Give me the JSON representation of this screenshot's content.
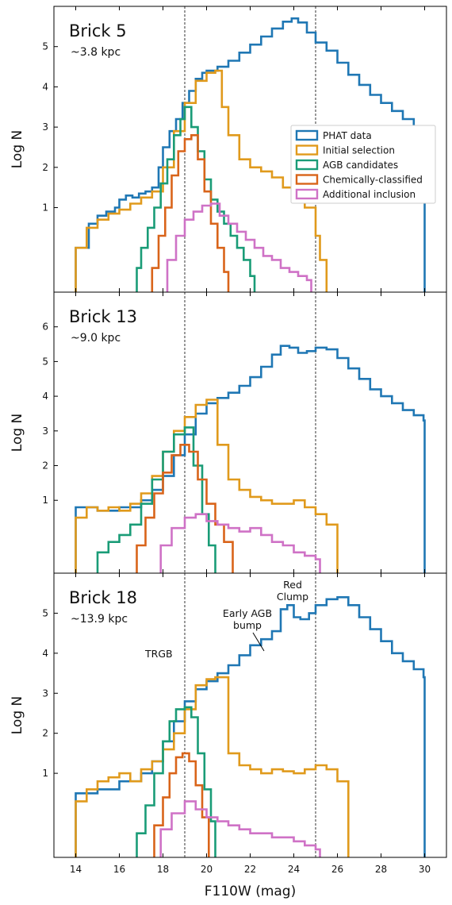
{
  "chart_data": {
    "type": "step",
    "xlabel": "F110W (mag)",
    "xlim": [
      13,
      31
    ],
    "xticks": [
      14,
      16,
      18,
      20,
      22,
      24,
      26,
      28,
      30
    ],
    "vlines": [
      19.0,
      25.0
    ],
    "colors": {
      "PHAT data": "#1f77b4",
      "Initial selection": "#e09a1c",
      "AGB candidates": "#1a9c77",
      "Chemically-classified": "#d9641a",
      "Additional inclusion": "#cf72c6"
    },
    "legend": {
      "placement": "right, in Brick 5 panel",
      "entries": [
        "PHAT data",
        "Initial selection",
        "AGB candidates",
        "Chemically-classified",
        "Additional inclusion"
      ]
    },
    "panels": [
      {
        "title": "Brick 5",
        "distance": "~3.8 kpc",
        "ylabel": "Log N",
        "ylim": [
          -1.1,
          6.0
        ],
        "yticks": [
          1,
          2,
          3,
          4,
          5
        ],
        "series": [
          {
            "name": "PHAT data",
            "x": [
              14.0,
              14.6,
              15.0,
              15.4,
              15.8,
              16.0,
              16.3,
              16.6,
              16.9,
              17.2,
              17.5,
              17.8,
              18.0,
              18.3,
              18.6,
              18.9,
              19.2,
              19.5,
              19.8,
              20.0,
              20.5,
              21.0,
              21.5,
              22.0,
              22.5,
              23.0,
              23.5,
              23.9,
              24.2,
              24.6,
              25.0,
              25.5,
              26.0,
              26.5,
              27.0,
              27.5,
              28.0,
              28.5,
              29.0,
              29.5,
              29.95,
              30.0
            ],
            "y": [
              0.0,
              0.6,
              0.8,
              0.9,
              1.0,
              1.2,
              1.3,
              1.25,
              1.35,
              1.4,
              1.5,
              2.0,
              2.5,
              2.9,
              3.2,
              3.6,
              3.9,
              4.2,
              4.35,
              4.4,
              4.5,
              4.65,
              4.85,
              5.05,
              5.25,
              5.45,
              5.62,
              5.7,
              5.6,
              5.35,
              5.1,
              4.9,
              4.6,
              4.3,
              4.05,
              3.8,
              3.6,
              3.4,
              3.2,
              3.0,
              2.85,
              -1.1
            ]
          },
          {
            "name": "Initial selection",
            "x": [
              14.0,
              14.5,
              15.0,
              15.5,
              16.0,
              16.5,
              17.0,
              17.5,
              18.0,
              18.5,
              19.0,
              19.5,
              20.0,
              20.4,
              20.7,
              21.0,
              21.5,
              22.0,
              22.5,
              23.0,
              23.5,
              24.0,
              24.5,
              25.0,
              25.2,
              25.5
            ],
            "y": [
              0.0,
              0.5,
              0.7,
              0.85,
              0.95,
              1.1,
              1.25,
              1.4,
              2.0,
              2.9,
              3.6,
              4.15,
              4.35,
              4.4,
              3.5,
              2.8,
              2.2,
              2.0,
              1.9,
              1.75,
              1.5,
              1.3,
              1.0,
              0.3,
              -0.3,
              -1.1
            ]
          },
          {
            "name": "AGB candidates",
            "x": [
              16.8,
              17.0,
              17.3,
              17.6,
              17.9,
              18.2,
              18.5,
              18.8,
              19.0,
              19.3,
              19.6,
              19.9,
              20.2,
              20.5,
              20.8,
              21.1,
              21.4,
              21.7,
              22.0,
              22.2
            ],
            "y": [
              -0.5,
              0.0,
              0.5,
              1.0,
              1.6,
              2.2,
              2.8,
              3.2,
              3.5,
              3.0,
              2.4,
              1.7,
              1.2,
              0.9,
              0.6,
              0.3,
              0.0,
              -0.3,
              -0.7,
              -1.1
            ]
          },
          {
            "name": "Chemically-classified",
            "x": [
              17.5,
              17.8,
              18.1,
              18.4,
              18.7,
              19.0,
              19.3,
              19.6,
              19.9,
              20.2,
              20.5,
              20.8,
              21.0
            ],
            "y": [
              -0.5,
              0.3,
              1.0,
              1.8,
              2.4,
              2.7,
              2.8,
              2.2,
              1.4,
              0.6,
              0.0,
              -0.6,
              -1.1
            ]
          },
          {
            "name": "Additional inclusion",
            "x": [
              18.2,
              18.6,
              19.0,
              19.4,
              19.8,
              20.2,
              20.6,
              21.0,
              21.4,
              21.8,
              22.2,
              22.6,
              23.0,
              23.4,
              23.8,
              24.2,
              24.6,
              24.8
            ],
            "y": [
              -0.3,
              0.3,
              0.7,
              0.9,
              1.05,
              1.1,
              0.8,
              0.6,
              0.4,
              0.2,
              0.0,
              -0.2,
              -0.3,
              -0.5,
              -0.6,
              -0.7,
              -0.8,
              -1.1
            ]
          }
        ]
      },
      {
        "title": "Brick 13",
        "distance": "~9.0 kpc",
        "ylabel": "Log N",
        "ylim": [
          -1.1,
          7.0
        ],
        "yticks": [
          1,
          2,
          3,
          4,
          5,
          6
        ],
        "series": [
          {
            "name": "PHAT data",
            "x": [
              14.0,
              15.0,
              16.0,
              17.0,
              17.5,
              18.0,
              18.5,
              19.0,
              19.5,
              20.0,
              20.5,
              21.0,
              21.5,
              22.0,
              22.5,
              23.0,
              23.4,
              23.8,
              24.2,
              24.6,
              25.0,
              25.5,
              26.0,
              26.5,
              27.0,
              27.5,
              28.0,
              28.5,
              29.0,
              29.5,
              29.95,
              30.0
            ],
            "y": [
              0.8,
              0.7,
              0.8,
              1.0,
              1.3,
              1.7,
              2.3,
              2.9,
              3.5,
              3.8,
              3.95,
              4.1,
              4.3,
              4.55,
              4.85,
              5.2,
              5.45,
              5.4,
              5.25,
              5.3,
              5.4,
              5.35,
              5.1,
              4.8,
              4.5,
              4.2,
              4.0,
              3.8,
              3.6,
              3.45,
              3.3,
              -1.1
            ]
          },
          {
            "name": "Initial selection",
            "x": [
              14.0,
              14.5,
              15.0,
              15.5,
              16.0,
              16.5,
              17.0,
              17.5,
              18.0,
              18.5,
              19.0,
              19.5,
              20.0,
              20.5,
              21.0,
              21.5,
              22.0,
              22.5,
              23.0,
              23.5,
              24.0,
              24.5,
              25.0,
              25.5,
              26.0
            ],
            "y": [
              0.5,
              0.8,
              0.7,
              0.8,
              0.7,
              0.9,
              1.2,
              1.7,
              2.4,
              3.0,
              3.4,
              3.75,
              3.9,
              2.6,
              1.6,
              1.3,
              1.1,
              1.0,
              0.9,
              0.9,
              1.0,
              0.8,
              0.6,
              0.3,
              -1.1
            ]
          },
          {
            "name": "AGB candidates",
            "x": [
              15.0,
              15.5,
              16.0,
              16.5,
              17.0,
              17.5,
              18.0,
              18.5,
              19.0,
              19.4,
              19.8,
              20.1,
              20.4
            ],
            "y": [
              -0.5,
              -0.2,
              0.0,
              0.3,
              0.9,
              1.6,
              2.4,
              2.9,
              3.1,
              2.0,
              0.6,
              -0.3,
              -1.1
            ]
          },
          {
            "name": "Chemically-classified",
            "x": [
              16.8,
              17.2,
              17.6,
              18.0,
              18.4,
              18.8,
              19.2,
              19.6,
              20.0,
              20.4,
              20.8,
              21.2
            ],
            "y": [
              -0.3,
              0.5,
              1.2,
              1.8,
              2.3,
              2.6,
              2.4,
              1.6,
              0.9,
              0.3,
              -0.2,
              -1.1
            ]
          },
          {
            "name": "Additional inclusion",
            "x": [
              17.9,
              18.4,
              19.0,
              19.5,
              20.0,
              20.5,
              21.0,
              21.5,
              22.0,
              22.5,
              23.0,
              23.5,
              24.0,
              24.5,
              25.0,
              25.2
            ],
            "y": [
              -0.3,
              0.2,
              0.5,
              0.6,
              0.4,
              0.3,
              0.2,
              0.1,
              0.2,
              0.0,
              -0.2,
              -0.3,
              -0.5,
              -0.6,
              -0.7,
              -1.1
            ]
          }
        ]
      },
      {
        "title": "Brick 18",
        "distance": "~13.9 kpc",
        "ylabel": "Log N",
        "ylim": [
          -1.1,
          6.0
        ],
        "yticks": [
          1,
          2,
          3,
          4,
          5
        ],
        "annotations": [
          "TRGB",
          "Early AGB bump",
          "Red Clump"
        ],
        "series": [
          {
            "name": "PHAT data",
            "x": [
              14.0,
              15.0,
              16.0,
              17.0,
              17.5,
              18.0,
              18.5,
              19.0,
              19.5,
              20.0,
              20.5,
              21.0,
              21.5,
              22.0,
              22.5,
              23.0,
              23.4,
              23.7,
              24.0,
              24.3,
              24.7,
              25.0,
              25.5,
              26.0,
              26.5,
              27.0,
              27.5,
              28.0,
              28.5,
              29.0,
              29.5,
              29.95,
              30.0
            ],
            "y": [
              0.5,
              0.6,
              0.8,
              1.0,
              1.3,
              1.8,
              2.3,
              2.8,
              3.1,
              3.3,
              3.5,
              3.7,
              3.95,
              4.2,
              4.35,
              4.55,
              5.1,
              5.2,
              4.9,
              4.85,
              5.0,
              5.2,
              5.35,
              5.4,
              5.2,
              4.9,
              4.6,
              4.3,
              4.0,
              3.8,
              3.6,
              3.4,
              -1.1
            ]
          },
          {
            "name": "Initial selection",
            "x": [
              14.0,
              14.5,
              15.0,
              15.5,
              16.0,
              16.5,
              17.0,
              17.5,
              18.0,
              18.5,
              19.0,
              19.5,
              20.0,
              20.4,
              21.0,
              21.5,
              22.0,
              22.5,
              23.0,
              23.5,
              24.0,
              24.5,
              25.0,
              25.5,
              26.0,
              26.5
            ],
            "y": [
              0.3,
              0.6,
              0.8,
              0.9,
              1.0,
              0.8,
              1.1,
              1.3,
              1.6,
              2.0,
              2.6,
              3.2,
              3.35,
              3.4,
              1.5,
              1.2,
              1.1,
              1.0,
              1.1,
              1.05,
              1.0,
              1.1,
              1.2,
              1.1,
              0.8,
              -1.1
            ]
          },
          {
            "name": "AGB candidates",
            "x": [
              16.8,
              17.2,
              17.6,
              18.0,
              18.3,
              18.6,
              19.0,
              19.3,
              19.6,
              19.9,
              20.2,
              20.4
            ],
            "y": [
              -0.5,
              0.2,
              1.0,
              1.8,
              2.3,
              2.6,
              2.65,
              2.4,
              1.5,
              0.6,
              -0.2,
              -1.1
            ]
          },
          {
            "name": "Chemically-classified",
            "x": [
              17.6,
              18.0,
              18.3,
              18.6,
              18.9,
              19.2,
              19.5,
              19.8,
              20.1
            ],
            "y": [
              -0.3,
              0.4,
              1.0,
              1.4,
              1.5,
              1.3,
              0.7,
              -0.1,
              -1.1
            ]
          },
          {
            "name": "Additional inclusion",
            "x": [
              17.9,
              18.4,
              19.0,
              19.5,
              20.0,
              20.5,
              21.0,
              21.5,
              22.0,
              22.5,
              23.0,
              23.5,
              24.0,
              24.5,
              25.0,
              25.2
            ],
            "y": [
              -0.4,
              0.0,
              0.3,
              0.1,
              -0.1,
              -0.2,
              -0.3,
              -0.4,
              -0.5,
              -0.5,
              -0.6,
              -0.6,
              -0.7,
              -0.8,
              -0.9,
              -1.1
            ]
          }
        ]
      }
    ]
  }
}
